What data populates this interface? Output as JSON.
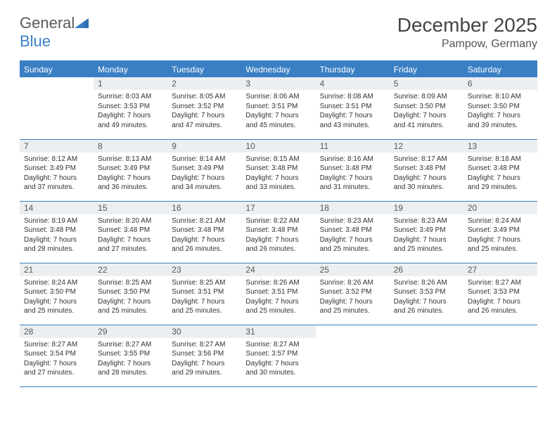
{
  "logo": {
    "text1": "General",
    "text2": "Blue"
  },
  "title": "December 2025",
  "location": "Pampow, Germany",
  "colors": {
    "accent": "#3a7fc4",
    "daynum_bg": "#eceff1",
    "text": "#333333",
    "header_text": "#ffffff"
  },
  "typography": {
    "title_fontsize": 28,
    "location_fontsize": 16,
    "header_fontsize": 12,
    "daynum_fontsize": 12,
    "body_fontsize": 10
  },
  "weekdays": [
    "Sunday",
    "Monday",
    "Tuesday",
    "Wednesday",
    "Thursday",
    "Friday",
    "Saturday"
  ],
  "weeks": [
    [
      null,
      {
        "n": "1",
        "sr": "8:03 AM",
        "ss": "3:53 PM",
        "dl": "7 hours and 49 minutes."
      },
      {
        "n": "2",
        "sr": "8:05 AM",
        "ss": "3:52 PM",
        "dl": "7 hours and 47 minutes."
      },
      {
        "n": "3",
        "sr": "8:06 AM",
        "ss": "3:51 PM",
        "dl": "7 hours and 45 minutes."
      },
      {
        "n": "4",
        "sr": "8:08 AM",
        "ss": "3:51 PM",
        "dl": "7 hours and 43 minutes."
      },
      {
        "n": "5",
        "sr": "8:09 AM",
        "ss": "3:50 PM",
        "dl": "7 hours and 41 minutes."
      },
      {
        "n": "6",
        "sr": "8:10 AM",
        "ss": "3:50 PM",
        "dl": "7 hours and 39 minutes."
      }
    ],
    [
      {
        "n": "7",
        "sr": "8:12 AM",
        "ss": "3:49 PM",
        "dl": "7 hours and 37 minutes."
      },
      {
        "n": "8",
        "sr": "8:13 AM",
        "ss": "3:49 PM",
        "dl": "7 hours and 36 minutes."
      },
      {
        "n": "9",
        "sr": "8:14 AM",
        "ss": "3:49 PM",
        "dl": "7 hours and 34 minutes."
      },
      {
        "n": "10",
        "sr": "8:15 AM",
        "ss": "3:48 PM",
        "dl": "7 hours and 33 minutes."
      },
      {
        "n": "11",
        "sr": "8:16 AM",
        "ss": "3:48 PM",
        "dl": "7 hours and 31 minutes."
      },
      {
        "n": "12",
        "sr": "8:17 AM",
        "ss": "3:48 PM",
        "dl": "7 hours and 30 minutes."
      },
      {
        "n": "13",
        "sr": "8:18 AM",
        "ss": "3:48 PM",
        "dl": "7 hours and 29 minutes."
      }
    ],
    [
      {
        "n": "14",
        "sr": "8:19 AM",
        "ss": "3:48 PM",
        "dl": "7 hours and 28 minutes."
      },
      {
        "n": "15",
        "sr": "8:20 AM",
        "ss": "3:48 PM",
        "dl": "7 hours and 27 minutes."
      },
      {
        "n": "16",
        "sr": "8:21 AM",
        "ss": "3:48 PM",
        "dl": "7 hours and 26 minutes."
      },
      {
        "n": "17",
        "sr": "8:22 AM",
        "ss": "3:48 PM",
        "dl": "7 hours and 26 minutes."
      },
      {
        "n": "18",
        "sr": "8:23 AM",
        "ss": "3:48 PM",
        "dl": "7 hours and 25 minutes."
      },
      {
        "n": "19",
        "sr": "8:23 AM",
        "ss": "3:49 PM",
        "dl": "7 hours and 25 minutes."
      },
      {
        "n": "20",
        "sr": "8:24 AM",
        "ss": "3:49 PM",
        "dl": "7 hours and 25 minutes."
      }
    ],
    [
      {
        "n": "21",
        "sr": "8:24 AM",
        "ss": "3:50 PM",
        "dl": "7 hours and 25 minutes."
      },
      {
        "n": "22",
        "sr": "8:25 AM",
        "ss": "3:50 PM",
        "dl": "7 hours and 25 minutes."
      },
      {
        "n": "23",
        "sr": "8:25 AM",
        "ss": "3:51 PM",
        "dl": "7 hours and 25 minutes."
      },
      {
        "n": "24",
        "sr": "8:26 AM",
        "ss": "3:51 PM",
        "dl": "7 hours and 25 minutes."
      },
      {
        "n": "25",
        "sr": "8:26 AM",
        "ss": "3:52 PM",
        "dl": "7 hours and 25 minutes."
      },
      {
        "n": "26",
        "sr": "8:26 AM",
        "ss": "3:53 PM",
        "dl": "7 hours and 26 minutes."
      },
      {
        "n": "27",
        "sr": "8:27 AM",
        "ss": "3:53 PM",
        "dl": "7 hours and 26 minutes."
      }
    ],
    [
      {
        "n": "28",
        "sr": "8:27 AM",
        "ss": "3:54 PM",
        "dl": "7 hours and 27 minutes."
      },
      {
        "n": "29",
        "sr": "8:27 AM",
        "ss": "3:55 PM",
        "dl": "7 hours and 28 minutes."
      },
      {
        "n": "30",
        "sr": "8:27 AM",
        "ss": "3:56 PM",
        "dl": "7 hours and 29 minutes."
      },
      {
        "n": "31",
        "sr": "8:27 AM",
        "ss": "3:57 PM",
        "dl": "7 hours and 30 minutes."
      },
      null,
      null,
      null
    ]
  ],
  "labels": {
    "sunrise": "Sunrise: ",
    "sunset": "Sunset: ",
    "daylight": "Daylight: "
  }
}
